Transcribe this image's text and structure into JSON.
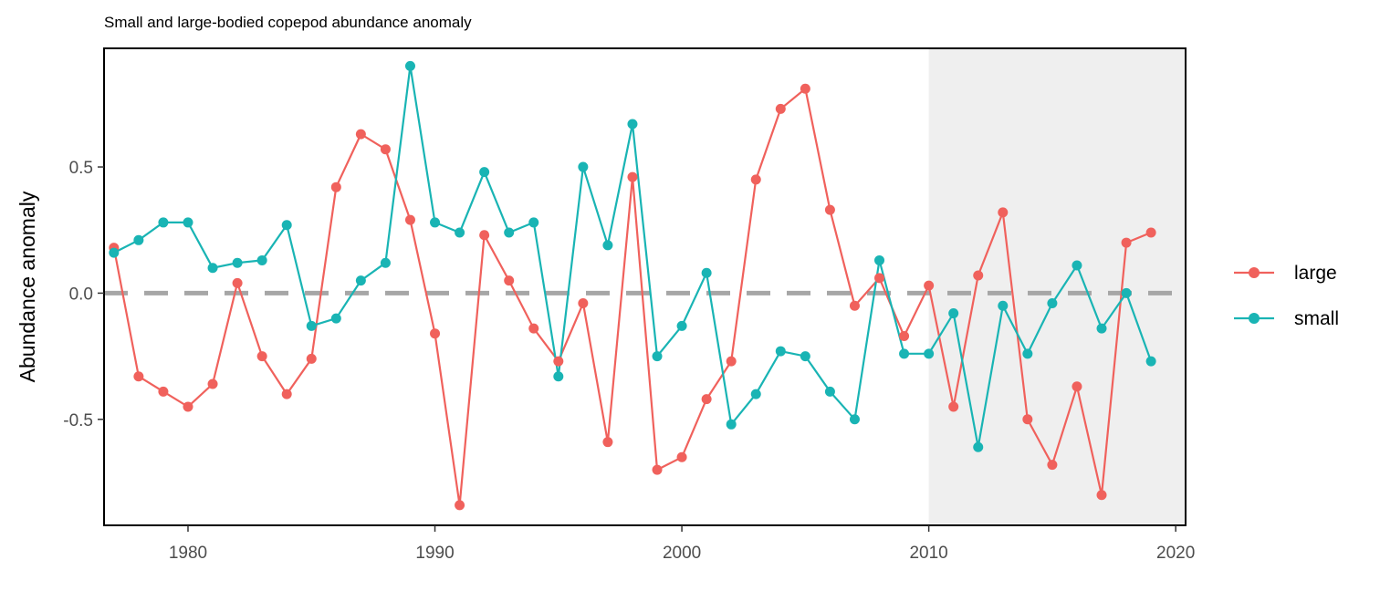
{
  "chart_data": {
    "type": "line",
    "title": "Small and large-bodied copepod abundance anomaly",
    "xlabel": "",
    "ylabel": "Abundance anomaly",
    "xlim": [
      1976.6,
      2020.4
    ],
    "ylim": [
      -0.92,
      0.97
    ],
    "x_ticks": [
      1980,
      1990,
      2000,
      2010,
      2020
    ],
    "y_ticks": [
      -0.5,
      0.0,
      0.5
    ],
    "y_tick_labels": [
      "-0.5",
      "0.0",
      "0.5"
    ],
    "reference_line": {
      "y": 0,
      "style": "dashed",
      "color": "#a6a6a6"
    },
    "shaded_region": {
      "x_start": 2010,
      "x_end": 2020.4,
      "color": "#efefef"
    },
    "grid": false,
    "legend_position": "right",
    "x": [
      1977,
      1978,
      1979,
      1980,
      1981,
      1982,
      1983,
      1984,
      1985,
      1986,
      1987,
      1988,
      1989,
      1990,
      1991,
      1992,
      1993,
      1994,
      1995,
      1996,
      1997,
      1998,
      1999,
      2000,
      2001,
      2002,
      2003,
      2004,
      2005,
      2006,
      2007,
      2008,
      2009,
      2010,
      2011,
      2012,
      2013,
      2014,
      2015,
      2016,
      2017,
      2018,
      2019
    ],
    "series": [
      {
        "name": "large",
        "color": "#f0615c",
        "values": [
          0.18,
          -0.33,
          -0.39,
          -0.45,
          -0.36,
          0.04,
          -0.25,
          -0.4,
          -0.26,
          0.42,
          0.63,
          0.57,
          0.29,
          -0.16,
          -0.84,
          0.23,
          0.05,
          -0.14,
          -0.27,
          -0.04,
          -0.59,
          0.46,
          -0.7,
          -0.65,
          -0.42,
          -0.27,
          0.45,
          0.73,
          0.81,
          0.33,
          -0.05,
          0.06,
          -0.17,
          0.03,
          -0.45,
          0.07,
          0.32,
          -0.5,
          -0.68,
          -0.37,
          -0.8,
          0.2,
          0.24
        ]
      },
      {
        "name": "small",
        "color": "#19b4b4",
        "values": [
          0.16,
          0.21,
          0.28,
          0.28,
          0.1,
          0.12,
          0.13,
          0.27,
          -0.13,
          -0.1,
          0.05,
          0.12,
          0.9,
          0.28,
          0.24,
          0.48,
          0.24,
          0.28,
          -0.33,
          0.5,
          0.19,
          0.67,
          -0.25,
          -0.13,
          0.08,
          -0.52,
          -0.4,
          -0.23,
          -0.25,
          -0.39,
          -0.5,
          0.13,
          -0.24,
          -0.24,
          -0.08,
          -0.61,
          -0.05,
          -0.24,
          -0.04,
          0.11,
          -0.14,
          0.0,
          -0.27
        ]
      }
    ]
  }
}
